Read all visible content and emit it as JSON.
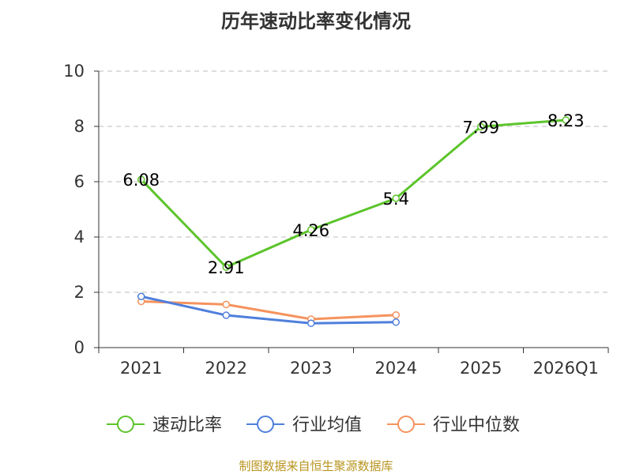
{
  "chart_data": {
    "type": "line",
    "title": "历年速动比率变化情况",
    "categories": [
      "2021",
      "2022",
      "2023",
      "2024",
      "2025",
      "2026Q1"
    ],
    "ylim": [
      0,
      10
    ],
    "yticks": [
      0,
      2,
      4,
      6,
      8,
      10
    ],
    "grid": true,
    "legend_position": "bottom",
    "series": [
      {
        "name": "速动比率",
        "color": "#5cc42b",
        "values": [
          6.08,
          2.91,
          4.26,
          5.4,
          7.99,
          8.23
        ],
        "labels": [
          "6.08",
          "2.91",
          "4.26",
          "5.4",
          "7.99",
          "8.23"
        ],
        "show_labels": true
      },
      {
        "name": "行业均值",
        "color": "#4f7fdb",
        "values": [
          1.85,
          1.17,
          0.88,
          0.92,
          null,
          null
        ],
        "show_labels": false
      },
      {
        "name": "行业中位数",
        "color": "#f5935e",
        "values": [
          1.67,
          1.56,
          1.03,
          1.18,
          null,
          null
        ],
        "show_labels": false
      }
    ],
    "source": "制图数据来自恒生聚源数据库"
  }
}
